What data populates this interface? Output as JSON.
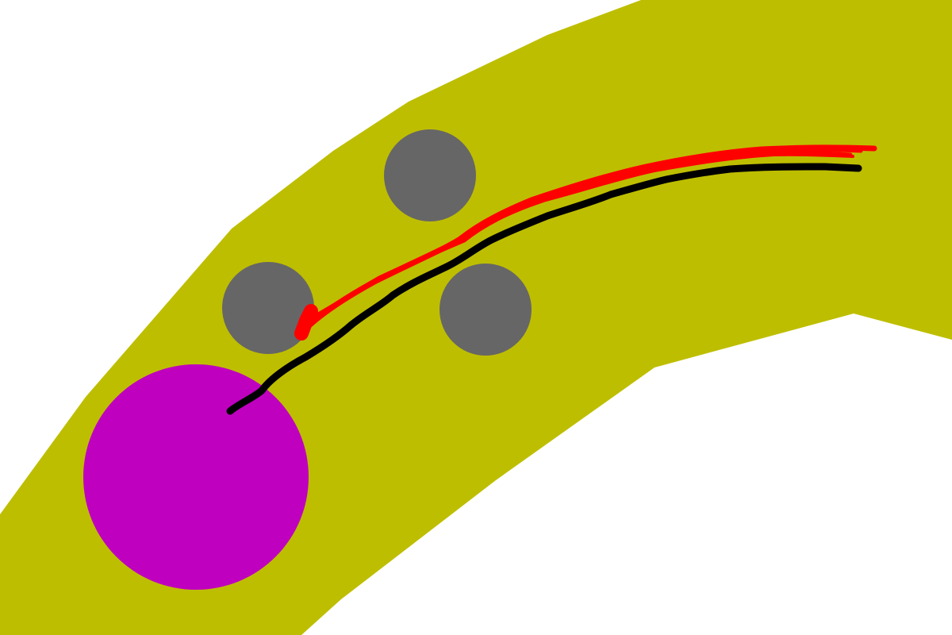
{
  "scene": {
    "background_color": "#ffffff",
    "road": {
      "color": "#bebe00"
    },
    "goal": {
      "color": "#bf00bf",
      "kind": "goal-circle"
    },
    "obstacles": {
      "color": "#666666",
      "count": 3,
      "kind": "gray-circle"
    },
    "paths": [
      {
        "name": "reference-path",
        "color": "#000000",
        "kind": "hand-drawn-path"
      },
      {
        "name": "predicted-paths",
        "color": "#ff0000",
        "kind": "hand-drawn-path-bundle"
      }
    ]
  }
}
